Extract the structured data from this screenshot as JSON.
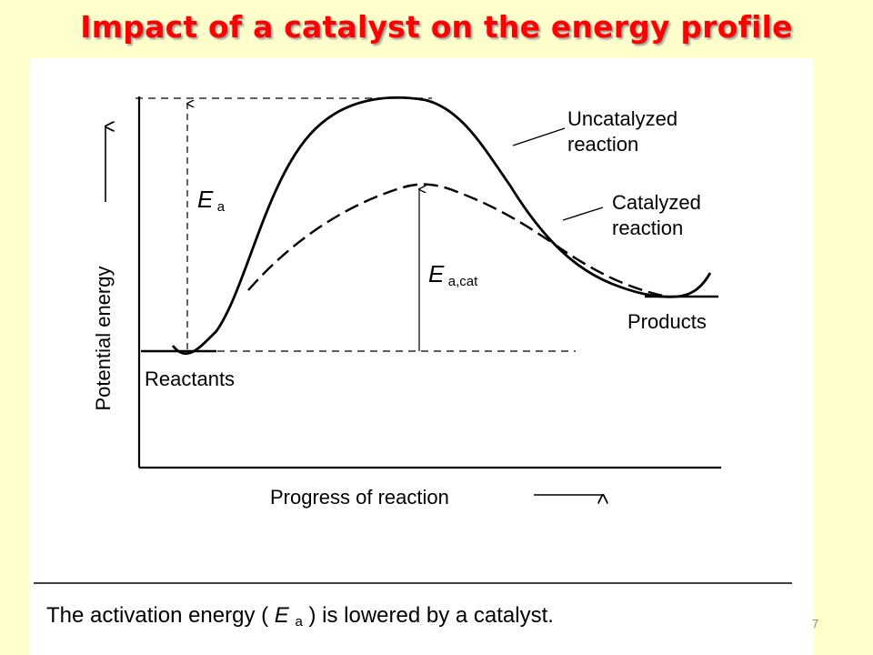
{
  "slide": {
    "title": "Impact of a catalyst on the energy profile",
    "title_color": "#ff0000",
    "title_shadow_color": "#9a9a9a",
    "background_color": "#ffffcc",
    "page_number": "7"
  },
  "diagram": {
    "y_axis_label": "Potential energy",
    "x_axis_label": "Progress of reaction",
    "curves": {
      "uncatalyzed": [
        "Uncatalyzed",
        "reaction"
      ],
      "catalyzed": [
        "Catalyzed",
        "reaction"
      ]
    },
    "levels": {
      "reactants": "Reactants",
      "products": "Products"
    },
    "energy_labels": {
      "ea_symbol": "E",
      "ea_subscript": "a",
      "ea_cat_symbol": "E",
      "ea_cat_subscript": "a,cat"
    },
    "caption": {
      "before": "The activation energy (",
      "symbol": "E",
      "subscript": "a",
      "after": ") is lowered by a catalyst."
    }
  }
}
